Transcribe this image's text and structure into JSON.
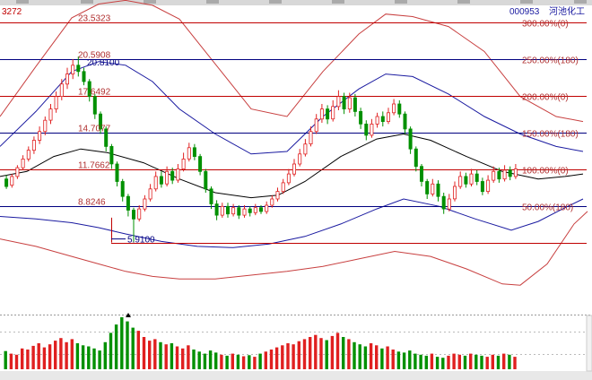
{
  "header": {
    "left_code": "3272",
    "stock_code": "000953",
    "stock_name": "河池化工"
  },
  "colors": {
    "up": "#e02020",
    "down": "#009000",
    "fib_line": "#000080",
    "fib_text": "#b03030",
    "band_red": "#c84040",
    "band_blue": "#1a1aa0",
    "ma_black": "#000000",
    "support": "#c00000"
  },
  "chart_data": {
    "type": "candlestick",
    "price_levels": [
      {
        "left_label": "23.5323",
        "right_label": "300.00%(0)",
        "value": 23.5323,
        "line": "red"
      },
      {
        "left_label": "20.5908",
        "right_label": "250.00%(180)",
        "value": 20.5908,
        "line": "blue"
      },
      {
        "left_label": "17.6492",
        "right_label": "200.00%(0)",
        "value": 17.6492,
        "line": "red"
      },
      {
        "left_label": "14.7077",
        "right_label": "150.00%(180)",
        "value": 14.7077,
        "line": "blue"
      },
      {
        "left_label": "11.7662",
        "right_label": "100.00%(0)",
        "value": 11.7662,
        "line": "red"
      },
      {
        "left_label": "8.8246",
        "right_label": "50.00%(180)",
        "value": 8.8246,
        "line": "blue"
      },
      {
        "left_label": "5.9100",
        "right_label": "",
        "value": 5.91,
        "line": "red"
      }
    ],
    "annotations": [
      {
        "text": "20.8100",
        "value": 20.81
      },
      {
        "text": "5.9100",
        "value": 5.91
      }
    ],
    "candles": [
      [
        11.0,
        10.4,
        11.3,
        10.2
      ],
      [
        10.5,
        11.2,
        11.4,
        10.3
      ],
      [
        11.2,
        11.9,
        12.1,
        11.0
      ],
      [
        11.9,
        12.6,
        12.9,
        11.7
      ],
      [
        12.6,
        13.3,
        13.6,
        12.4
      ],
      [
        13.3,
        14.1,
        14.4,
        13.0
      ],
      [
        14.1,
        14.8,
        15.2,
        13.8
      ],
      [
        14.8,
        15.7,
        16.0,
        14.5
      ],
      [
        15.7,
        16.6,
        17.0,
        15.4
      ],
      [
        16.6,
        17.6,
        18.0,
        16.3
      ],
      [
        17.6,
        18.6,
        19.0,
        17.3
      ],
      [
        18.6,
        19.4,
        19.9,
        18.2
      ],
      [
        19.4,
        20.1,
        20.6,
        19.0
      ],
      [
        20.1,
        19.6,
        20.8,
        19.2
      ],
      [
        19.6,
        18.8,
        19.9,
        18.5
      ],
      [
        18.8,
        17.6,
        19.0,
        17.2
      ],
      [
        17.6,
        16.2,
        17.8,
        15.8
      ],
      [
        16.2,
        15.0,
        16.4,
        14.6
      ],
      [
        15.0,
        13.6,
        15.2,
        13.2
      ],
      [
        13.6,
        12.2,
        13.8,
        11.8
      ],
      [
        12.2,
        10.8,
        12.4,
        10.4
      ],
      [
        10.8,
        9.6,
        11.0,
        9.2
      ],
      [
        9.6,
        8.5,
        9.8,
        8.0
      ],
      [
        8.5,
        7.8,
        8.7,
        5.91
      ],
      [
        7.8,
        8.6,
        8.9,
        7.6
      ],
      [
        8.6,
        9.4,
        9.7,
        8.4
      ],
      [
        9.4,
        10.2,
        10.6,
        9.2
      ],
      [
        10.2,
        11.2,
        11.6,
        10.0
      ],
      [
        11.2,
        10.6,
        11.6,
        10.3
      ],
      [
        10.6,
        11.6,
        12.0,
        10.4
      ],
      [
        11.6,
        10.9,
        11.9,
        10.6
      ],
      [
        10.9,
        11.8,
        12.2,
        10.7
      ],
      [
        11.8,
        12.6,
        13.1,
        11.6
      ],
      [
        12.6,
        13.5,
        13.9,
        12.4
      ],
      [
        13.5,
        12.8,
        13.8,
        12.5
      ],
      [
        12.8,
        11.6,
        13.0,
        11.3
      ],
      [
        11.6,
        10.2,
        11.8,
        9.9
      ],
      [
        10.2,
        9.0,
        10.4,
        8.6
      ],
      [
        9.0,
        8.1,
        9.3,
        7.7
      ],
      [
        8.1,
        8.8,
        9.1,
        7.9
      ],
      [
        8.8,
        8.2,
        9.1,
        7.9
      ],
      [
        8.2,
        8.7,
        9.0,
        8.0
      ],
      [
        8.7,
        8.1,
        8.9,
        7.8
      ],
      [
        8.1,
        8.6,
        8.9,
        7.9
      ],
      [
        8.6,
        8.3,
        8.8,
        8.0
      ],
      [
        8.3,
        8.7,
        9.0,
        8.1
      ],
      [
        8.7,
        8.4,
        8.9,
        8.2
      ],
      [
        8.4,
        8.9,
        9.2,
        8.2
      ],
      [
        8.9,
        9.4,
        9.7,
        8.7
      ],
      [
        9.4,
        10.0,
        10.3,
        9.2
      ],
      [
        10.0,
        10.7,
        11.0,
        9.8
      ],
      [
        10.7,
        11.4,
        11.8,
        10.5
      ],
      [
        11.4,
        12.2,
        12.6,
        11.2
      ],
      [
        12.2,
        13.0,
        13.4,
        12.0
      ],
      [
        13.0,
        13.8,
        14.2,
        12.8
      ],
      [
        13.8,
        14.8,
        15.2,
        13.6
      ],
      [
        14.8,
        15.8,
        16.2,
        14.6
      ],
      [
        15.8,
        16.6,
        17.0,
        15.5
      ],
      [
        16.6,
        15.8,
        16.9,
        15.4
      ],
      [
        15.8,
        16.8,
        17.3,
        15.6
      ],
      [
        16.8,
        17.6,
        18.1,
        16.5
      ],
      [
        17.6,
        16.6,
        17.9,
        16.2
      ],
      [
        16.6,
        17.5,
        17.9,
        16.3
      ],
      [
        17.5,
        16.4,
        17.8,
        16.0
      ],
      [
        16.4,
        15.4,
        16.7,
        15.0
      ],
      [
        15.4,
        14.5,
        15.7,
        14.1
      ],
      [
        14.5,
        15.4,
        15.8,
        14.3
      ],
      [
        15.4,
        16.0,
        16.3,
        15.1
      ],
      [
        16.0,
        15.6,
        16.4,
        15.2
      ],
      [
        15.6,
        16.3,
        16.7,
        15.4
      ],
      [
        16.3,
        17.0,
        17.4,
        16.1
      ],
      [
        17.0,
        16.2,
        17.3,
        15.9
      ],
      [
        16.2,
        15.0,
        16.4,
        14.6
      ],
      [
        15.0,
        13.4,
        15.2,
        13.0
      ],
      [
        13.4,
        12.0,
        13.6,
        11.6
      ],
      [
        12.0,
        10.8,
        12.2,
        10.4
      ],
      [
        10.8,
        9.8,
        11.0,
        9.4
      ],
      [
        9.8,
        10.6,
        11.0,
        9.6
      ],
      [
        10.6,
        9.6,
        10.9,
        9.2
      ],
      [
        9.6,
        8.6,
        9.9,
        8.2
      ],
      [
        8.6,
        9.4,
        9.8,
        8.4
      ],
      [
        9.4,
        10.4,
        10.8,
        9.2
      ],
      [
        10.4,
        11.2,
        11.6,
        10.2
      ],
      [
        11.2,
        10.6,
        11.5,
        10.3
      ],
      [
        10.6,
        11.4,
        11.8,
        10.4
      ],
      [
        11.4,
        10.8,
        11.7,
        10.5
      ],
      [
        10.8,
        10.0,
        11.1,
        9.7
      ],
      [
        10.0,
        10.9,
        11.3,
        9.8
      ],
      [
        10.9,
        11.6,
        12.0,
        10.7
      ],
      [
        11.6,
        11.0,
        11.9,
        10.7
      ],
      [
        11.0,
        11.7,
        12.1,
        10.8
      ],
      [
        11.7,
        11.2,
        12.0,
        10.9
      ],
      [
        11.2,
        11.8,
        12.2,
        11.0
      ]
    ],
    "volume": [
      0.35,
      0.3,
      0.28,
      0.4,
      0.38,
      0.45,
      0.5,
      0.42,
      0.48,
      0.55,
      0.6,
      0.52,
      0.58,
      0.5,
      0.46,
      0.44,
      0.4,
      0.36,
      0.52,
      0.7,
      0.86,
      1.0,
      0.92,
      0.8,
      0.74,
      0.62,
      0.55,
      0.58,
      0.52,
      0.48,
      0.5,
      0.44,
      0.4,
      0.46,
      0.38,
      0.34,
      0.3,
      0.36,
      0.32,
      0.28,
      0.26,
      0.3,
      0.28,
      0.25,
      0.27,
      0.24,
      0.3,
      0.34,
      0.38,
      0.42,
      0.46,
      0.5,
      0.48,
      0.54,
      0.58,
      0.62,
      0.66,
      0.6,
      0.56,
      0.64,
      0.7,
      0.62,
      0.58,
      0.52,
      0.48,
      0.44,
      0.5,
      0.46,
      0.4,
      0.44,
      0.38,
      0.34,
      0.32,
      0.36,
      0.3,
      0.28,
      0.26,
      0.3,
      0.24,
      0.22,
      0.26,
      0.3,
      0.28,
      0.26,
      0.3,
      0.28,
      0.26,
      0.24,
      0.28,
      0.26,
      0.3,
      0.28,
      0.24
    ],
    "bands": {
      "outer_upper": [
        [
          0,
          16.0
        ],
        [
          40,
          20.0
        ],
        [
          80,
          23.9
        ],
        [
          110,
          25.0
        ],
        [
          140,
          25.3
        ],
        [
          170,
          24.9
        ],
        [
          200,
          23.8
        ],
        [
          240,
          20.2
        ],
        [
          280,
          16.6
        ],
        [
          320,
          16.0
        ],
        [
          360,
          19.6
        ],
        [
          400,
          22.6
        ],
        [
          430,
          24.2
        ],
        [
          460,
          24.0
        ],
        [
          500,
          23.2
        ],
        [
          540,
          21.2
        ],
        [
          580,
          17.6
        ],
        [
          620,
          16.0
        ],
        [
          650,
          15.6
        ]
      ],
      "blue_upper": [
        [
          0,
          13.6
        ],
        [
          40,
          16.4
        ],
        [
          80,
          19.6
        ],
        [
          110,
          20.4
        ],
        [
          140,
          20.1
        ],
        [
          170,
          18.8
        ],
        [
          200,
          16.6
        ],
        [
          240,
          14.6
        ],
        [
          280,
          13.0
        ],
        [
          320,
          13.2
        ],
        [
          360,
          16.0
        ],
        [
          400,
          18.2
        ],
        [
          430,
          19.4
        ],
        [
          460,
          19.2
        ],
        [
          500,
          17.8
        ],
        [
          540,
          16.0
        ],
        [
          580,
          14.6
        ],
        [
          620,
          13.6
        ],
        [
          650,
          13.2
        ]
      ],
      "middle": [
        [
          0,
          11.2
        ],
        [
          30,
          11.6
        ],
        [
          60,
          12.8
        ],
        [
          90,
          13.4
        ],
        [
          120,
          13.1
        ],
        [
          160,
          12.3
        ],
        [
          200,
          11.0
        ],
        [
          240,
          9.9
        ],
        [
          280,
          9.5
        ],
        [
          310,
          9.7
        ],
        [
          340,
          10.8
        ],
        [
          380,
          12.8
        ],
        [
          420,
          14.2
        ],
        [
          450,
          14.6
        ],
        [
          480,
          14.1
        ],
        [
          520,
          12.8
        ],
        [
          560,
          11.6
        ],
        [
          600,
          11.0
        ],
        [
          630,
          11.2
        ],
        [
          650,
          11.4
        ]
      ],
      "blue_lower": [
        [
          0,
          8.0
        ],
        [
          40,
          7.8
        ],
        [
          80,
          7.5
        ],
        [
          110,
          7.1
        ],
        [
          140,
          6.6
        ],
        [
          180,
          6.0
        ],
        [
          220,
          5.6
        ],
        [
          260,
          5.5
        ],
        [
          300,
          5.8
        ],
        [
          340,
          6.4
        ],
        [
          380,
          7.4
        ],
        [
          420,
          8.6
        ],
        [
          450,
          9.4
        ],
        [
          490,
          8.8
        ],
        [
          530,
          7.8
        ],
        [
          570,
          6.9
        ],
        [
          600,
          7.6
        ],
        [
          630,
          8.7
        ],
        [
          650,
          9.4
        ]
      ],
      "outer_lower": [
        [
          0,
          6.2
        ],
        [
          40,
          5.6
        ],
        [
          80,
          4.8
        ],
        [
          110,
          4.2
        ],
        [
          140,
          3.6
        ],
        [
          170,
          3.2
        ],
        [
          200,
          3.0
        ],
        [
          240,
          3.0
        ],
        [
          280,
          3.3
        ],
        [
          320,
          3.6
        ],
        [
          360,
          4.0
        ],
        [
          400,
          4.6
        ],
        [
          440,
          5.2
        ],
        [
          480,
          4.8
        ],
        [
          520,
          3.8
        ],
        [
          560,
          2.6
        ],
        [
          580,
          2.5
        ],
        [
          610,
          4.2
        ],
        [
          640,
          7.4
        ],
        [
          655,
          8.4
        ]
      ]
    }
  }
}
